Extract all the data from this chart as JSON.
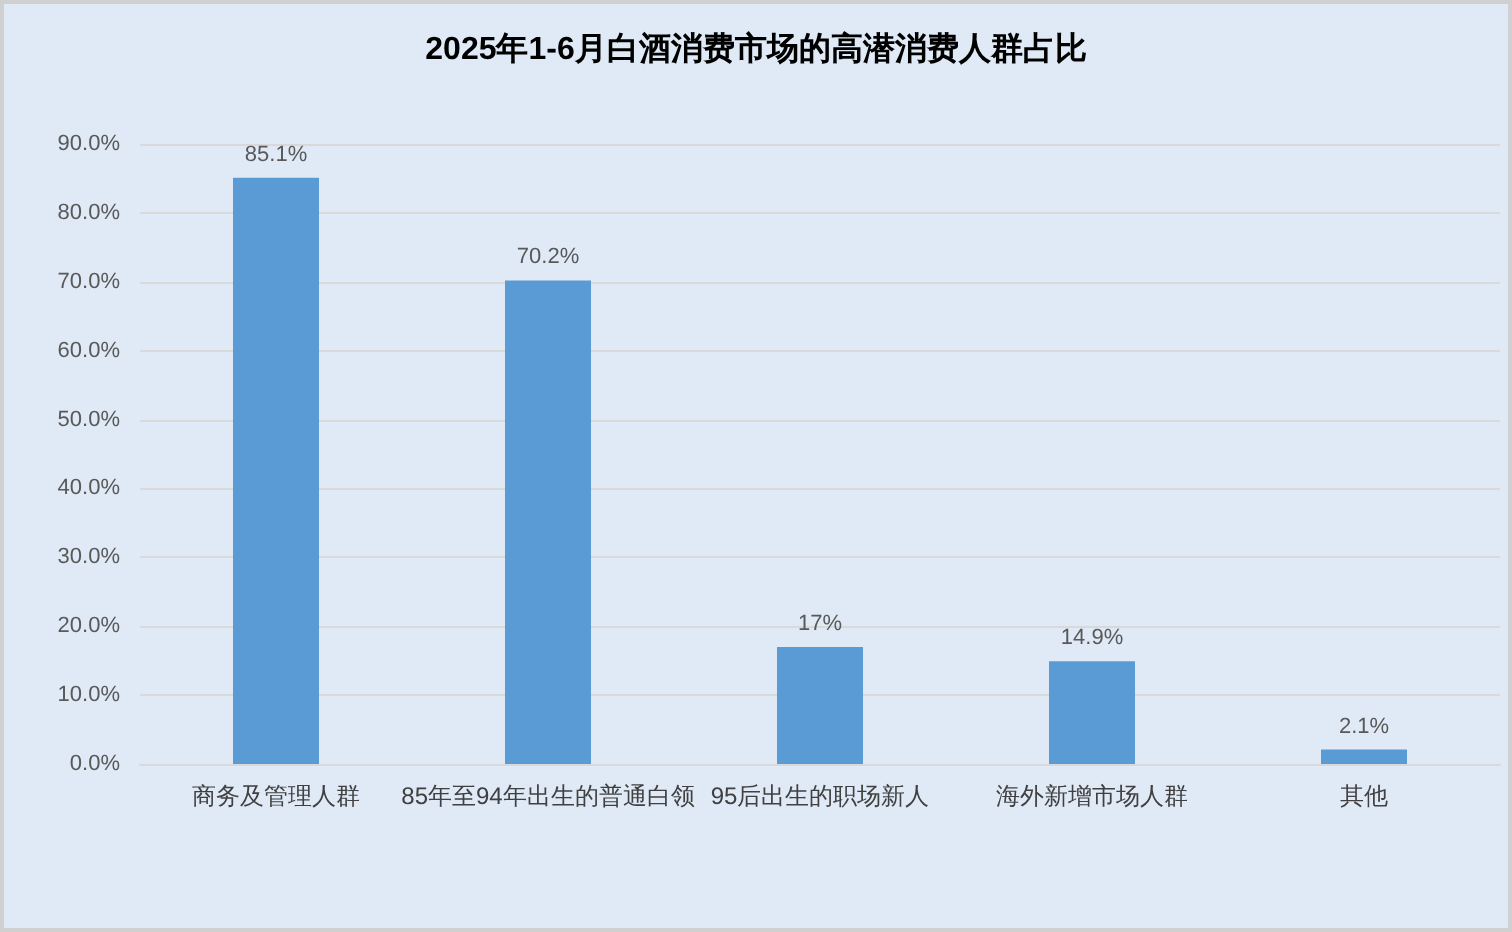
{
  "chart_data": {
    "type": "bar",
    "title": "2025年1-6月白酒消费市场的高潜消费人群占比",
    "categories": [
      "商务及管理人群",
      "85年至94年出生的普通白领",
      "95后出生的职场新人",
      "海外新增市场人群",
      "其他"
    ],
    "values": [
      85.1,
      70.2,
      17,
      14.9,
      2.1
    ],
    "color": "#5b9bd5",
    "value_labels": [
      "85.1%",
      "70.2%",
      "17%",
      "14.9%",
      "2.1%"
    ],
    "ylim": [
      0,
      90
    ],
    "yticks": [
      {
        "value": 0,
        "label": "0.0%"
      },
      {
        "value": 10,
        "label": "10.0%"
      },
      {
        "value": 20,
        "label": "20.0%"
      },
      {
        "value": 30,
        "label": "30.0%"
      },
      {
        "value": 40,
        "label": "40.0%"
      },
      {
        "value": 50,
        "label": "50.0%"
      },
      {
        "value": 60,
        "label": "60.0%"
      },
      {
        "value": 70,
        "label": "70.0%"
      },
      {
        "value": 80,
        "label": "80.0%"
      },
      {
        "value": 90,
        "label": "90.0%"
      }
    ],
    "grid": true
  }
}
